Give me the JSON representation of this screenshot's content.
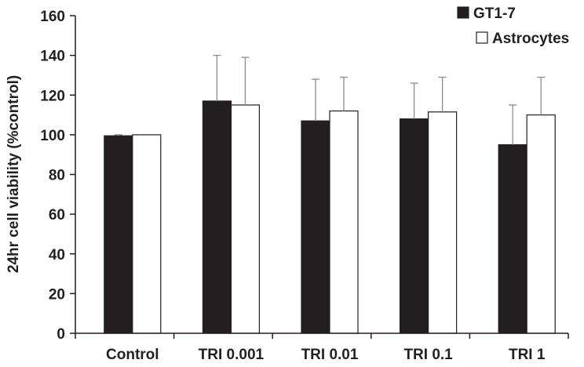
{
  "chart_data": {
    "type": "bar",
    "categories": [
      "Control",
      "TRI 0.001",
      "TRI 0.01",
      "TRI 0.1",
      "TRI 1"
    ],
    "series": [
      {
        "name": "GT1-7",
        "color": "#231f20",
        "values": [
          99.5,
          117,
          107,
          108,
          95
        ],
        "errors": [
          0.5,
          23,
          21,
          18,
          20
        ]
      },
      {
        "name": "Astrocytes",
        "color": "#ffffff",
        "values": [
          100,
          115,
          112,
          111.5,
          110
        ],
        "errors": [
          0,
          24,
          17,
          17.5,
          19
        ]
      }
    ],
    "title": "",
    "xlabel": "",
    "ylabel": "24hr cell viability (%control)",
    "ylim": [
      0,
      160
    ],
    "yticks": [
      0,
      20,
      40,
      60,
      80,
      100,
      120,
      140,
      160
    ],
    "grid": false,
    "legend_position": "top-right"
  }
}
